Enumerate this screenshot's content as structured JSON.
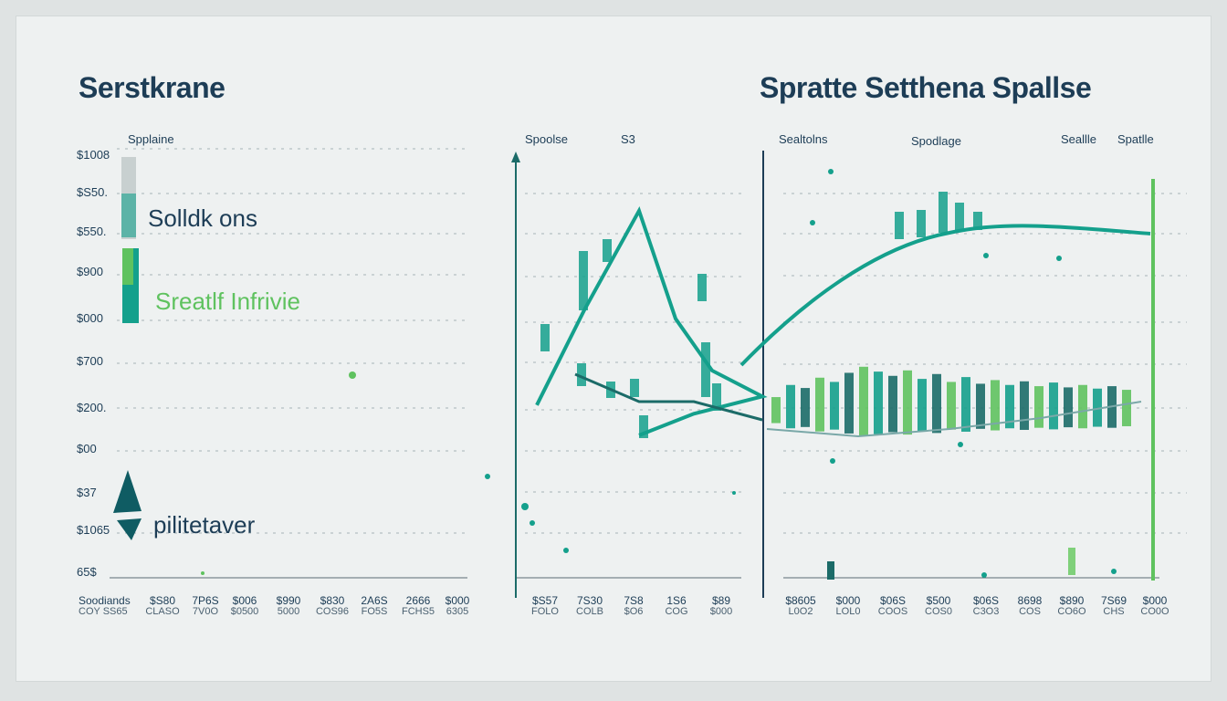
{
  "colors": {
    "teal": "#14a08c",
    "green": "#5fc25f",
    "navy": "#1d3d56",
    "lightgreen": "#7fd07a",
    "dark": "#1b6b68"
  },
  "titles": {
    "left": "Serstkrane",
    "right": "Spratte Setthena Spallse"
  },
  "panel1": {
    "legend_label": "Spplaine",
    "callout1": "Solldk ons",
    "callout2": "Sreatlf Infrivie",
    "callout3": "pilitetaver",
    "y_labels": [
      "$1008",
      "$S50.",
      "$550.",
      "$900",
      "$000",
      "$700",
      "$200.",
      "$00",
      "$37",
      "$1065",
      "65$"
    ],
    "x_labels": [
      [
        "Soodiands",
        "COY SS65"
      ],
      [
        "$S80",
        "CLASO"
      ],
      [
        "7P6S",
        "7V0O"
      ],
      [
        "$006",
        "$0500"
      ],
      [
        "$990",
        "5000"
      ],
      [
        "$830",
        "COS96"
      ],
      [
        "2A6S",
        "FO5S"
      ],
      [
        "2666",
        "FCHS5"
      ],
      [
        "$000",
        "6305"
      ]
    ]
  },
  "panel2": {
    "legend_label": "Spoolse",
    "legend_value": "S3",
    "x_labels": [
      [
        "$S57",
        "FOLO"
      ],
      [
        "7S30",
        "COLB"
      ],
      [
        "7S8",
        "$O6"
      ],
      [
        "1S6",
        "COG"
      ],
      [
        "$89",
        "$000"
      ]
    ]
  },
  "panel3": {
    "legend_labels": [
      "Sealtolns",
      "Spodlage",
      "Seallle",
      "Spatlle"
    ],
    "x_labels": [
      [
        "$8605",
        "L0O2"
      ],
      [
        "$000",
        "LOL0"
      ],
      [
        "$06S",
        "COOS"
      ],
      [
        "$500",
        "COS0"
      ],
      [
        "$06S",
        "C3O3"
      ],
      [
        "8698",
        "COS"
      ],
      [
        "$890",
        "CO6O"
      ],
      [
        "7S69",
        "CHS"
      ],
      [
        "$000",
        "CO0O"
      ]
    ]
  },
  "chart_data": [
    {
      "type": "line",
      "title": "Serstkrane",
      "series": [
        {
          "name": "Spplaine",
          "values": []
        }
      ]
    },
    {
      "type": "line",
      "series": [
        {
          "name": "Spoolse",
          "values": [
            40,
            62,
            85,
            60,
            48,
            42,
            38,
            33
          ]
        }
      ]
    },
    {
      "type": "bar",
      "title": "Spratte Setthena Spallse",
      "series": [
        {
          "name": "Spodlage",
          "values": [
            30,
            50,
            45,
            62,
            55,
            70,
            80,
            72,
            65,
            74,
            60,
            68,
            55,
            63,
            52,
            58,
            50,
            56,
            48,
            54,
            46,
            50,
            44,
            48,
            42
          ]
        }
      ]
    }
  ]
}
